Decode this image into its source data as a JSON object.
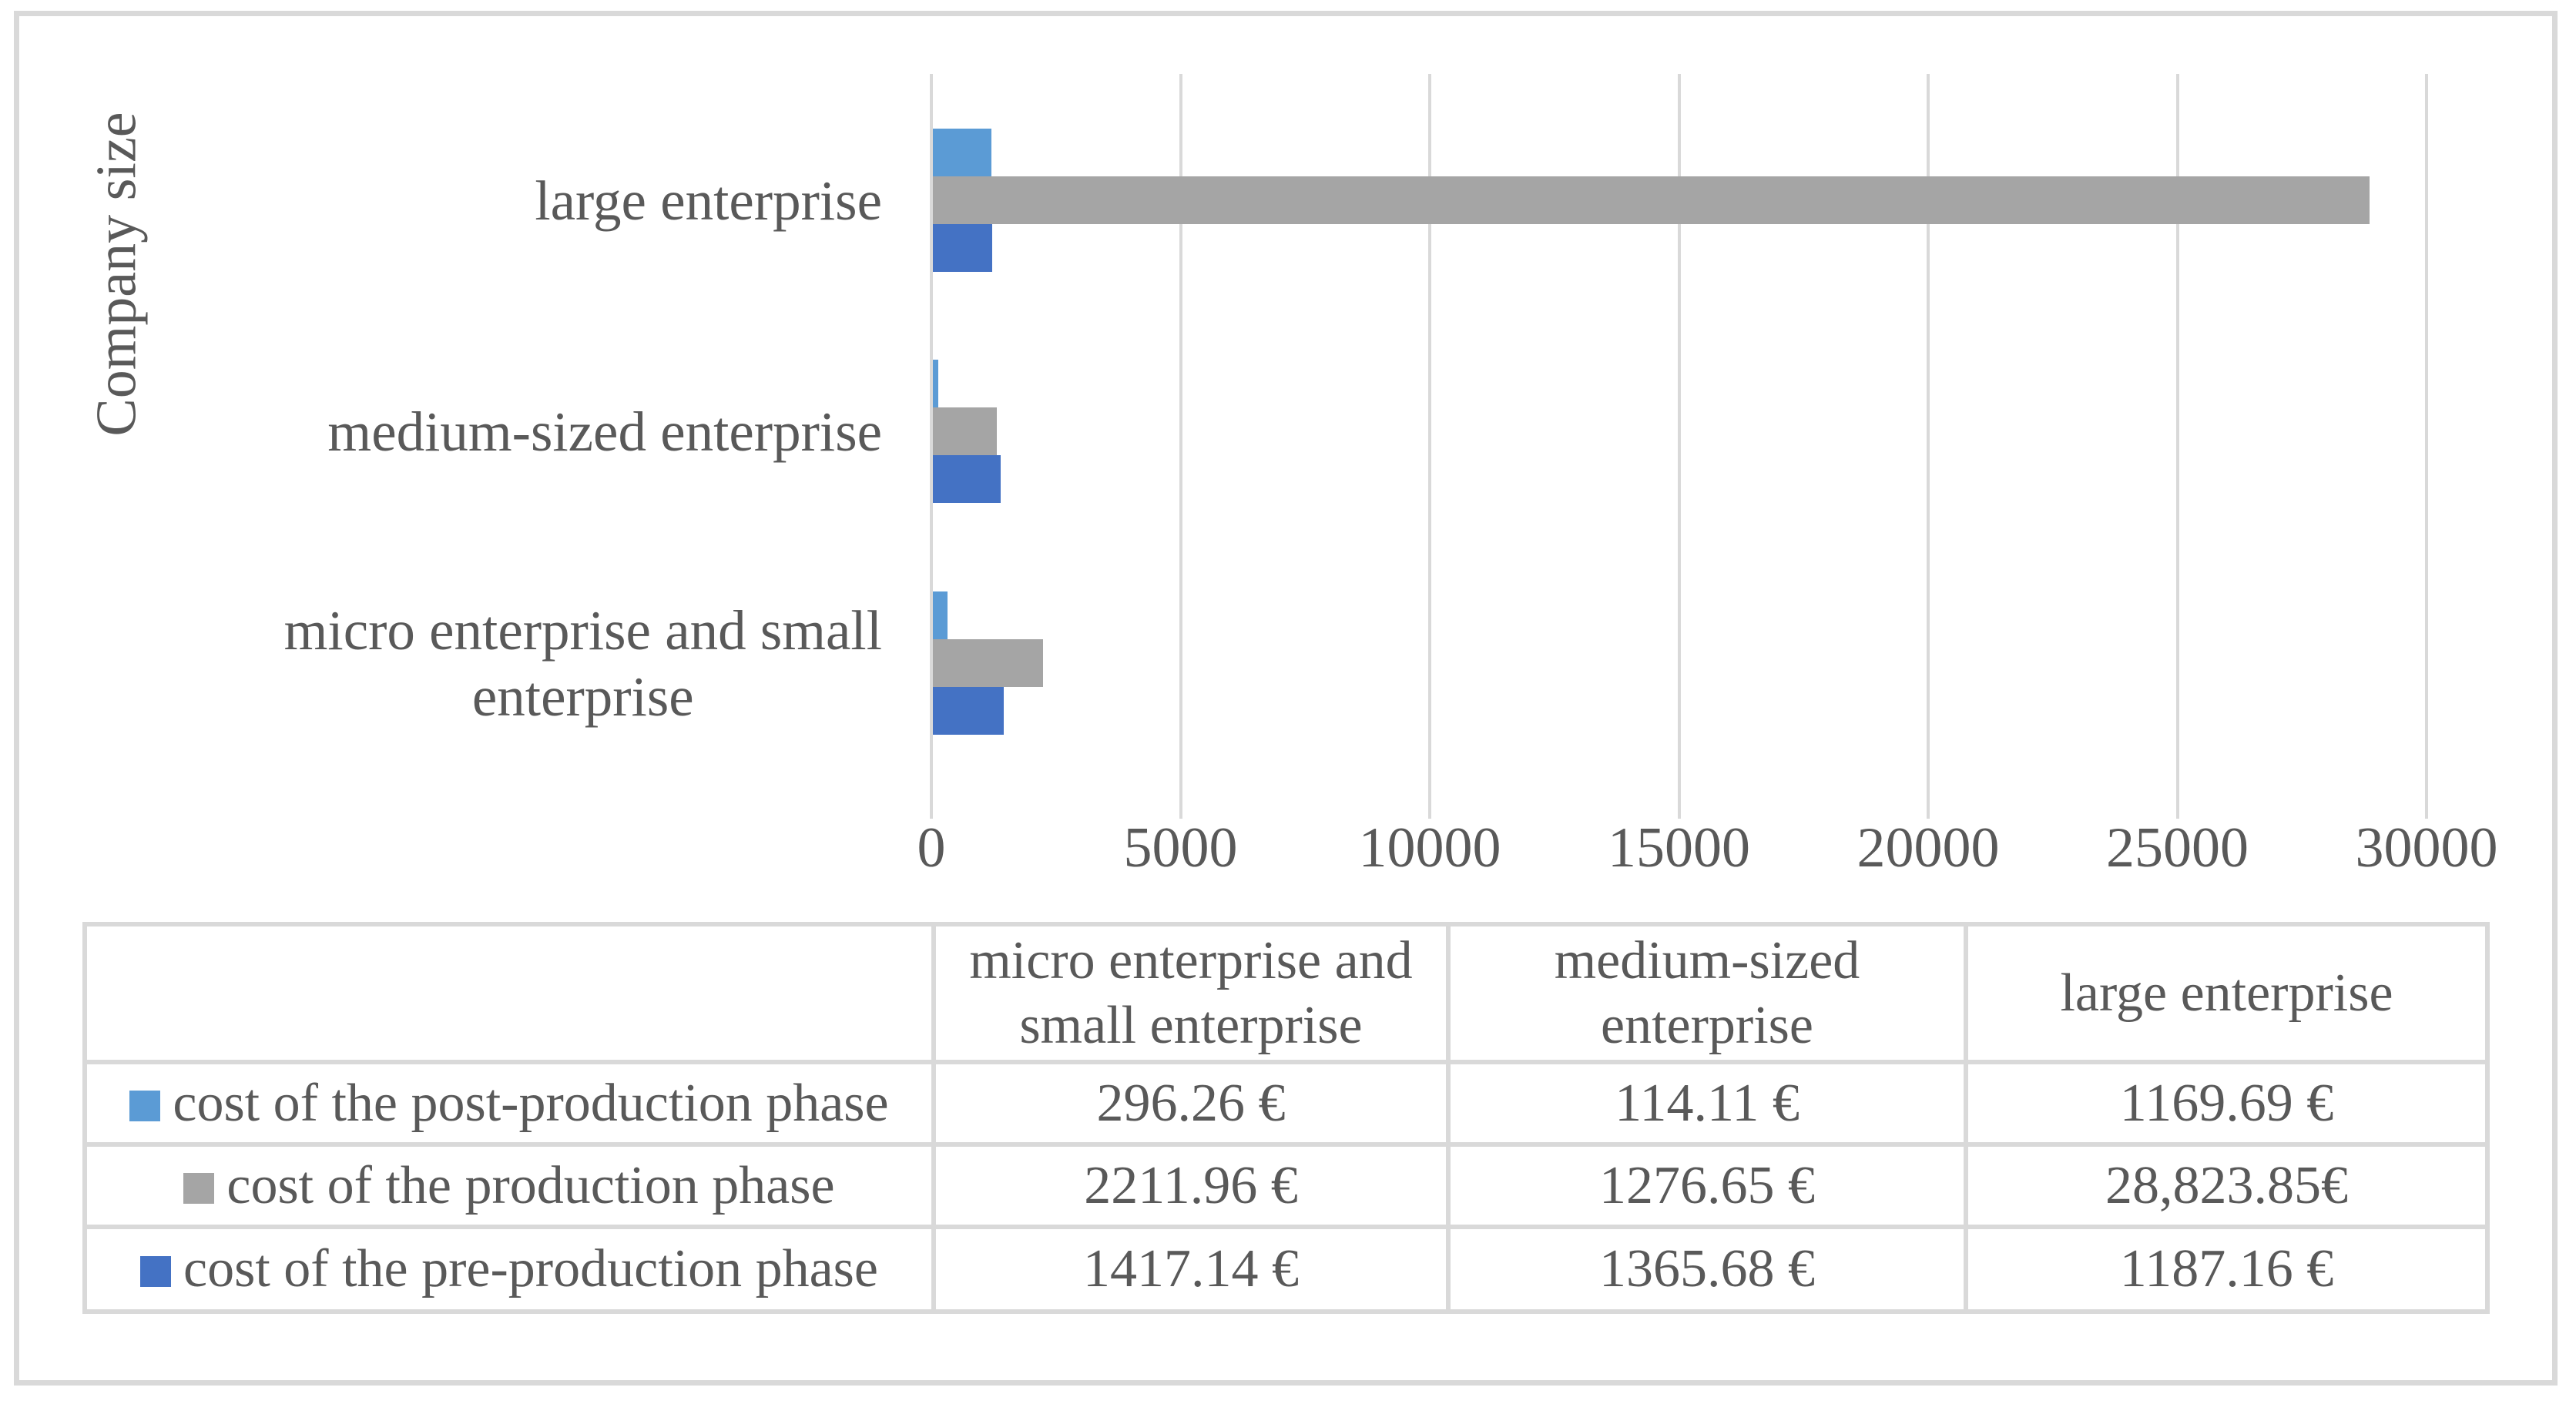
{
  "figure": {
    "background_color": "#ffffff",
    "border_color": "#d9d9d9"
  },
  "axis": {
    "y_title": "Company size",
    "x_tick_labels": [
      "0",
      "5000",
      "10000",
      "15000",
      "20000",
      "25000",
      "30000"
    ],
    "gridline_color": "#d9d9d9",
    "text_color": "#595959"
  },
  "category_axis_labels": [
    {
      "lines": [
        "large enterprise"
      ]
    },
    {
      "lines": [
        "medium-sized enterprise"
      ]
    },
    {
      "lines": [
        "micro enterprise and small",
        "enterprise"
      ]
    }
  ],
  "chart_data": {
    "type": "bar",
    "orientation": "horizontal",
    "title": "",
    "xlabel": "",
    "ylabel": "Company size",
    "xlim": [
      0,
      30000
    ],
    "x_ticks": [
      0,
      5000,
      10000,
      15000,
      20000,
      25000,
      30000
    ],
    "grid": true,
    "legend_position": "table-below-chart",
    "categories": [
      "micro enterprise and small enterprise",
      "medium-sized enterprise",
      "large enterprise"
    ],
    "category_display_order_top_to_bottom": [
      "large enterprise",
      "medium-sized enterprise",
      "micro enterprise and small enterprise"
    ],
    "series": [
      {
        "name": "cost of the post-production phase",
        "color": "#5B9BD5",
        "values": [
          296.26,
          114.11,
          1169.69
        ]
      },
      {
        "name": "cost of the production phase",
        "color": "#A5A5A5",
        "values": [
          2211.96,
          1276.65,
          28823.85
        ]
      },
      {
        "name": "cost of the pre-production phase",
        "color": "#4472C4",
        "values": [
          1417.14,
          1365.68,
          1187.16
        ]
      }
    ]
  },
  "table": {
    "column_headers": [
      "micro enterprise and\nsmall enterprise",
      "medium-sized\nenterprise",
      "large enterprise"
    ],
    "rows": [
      {
        "label": "cost of the post-production phase",
        "swatch_color": "#5B9BD5",
        "values": [
          "296.26 €",
          "114.11 €",
          "1169.69 €"
        ]
      },
      {
        "label": "cost of the production phase",
        "swatch_color": "#A5A5A5",
        "values": [
          "2211.96 €",
          "1276.65 €",
          "28,823.85€"
        ]
      },
      {
        "label": "cost of the pre-production phase",
        "swatch_color": "#4472C4",
        "values": [
          "1417.14 €",
          "1365.68 €",
          "1187.16 €"
        ]
      }
    ],
    "border_color": "#d9d9d9"
  }
}
